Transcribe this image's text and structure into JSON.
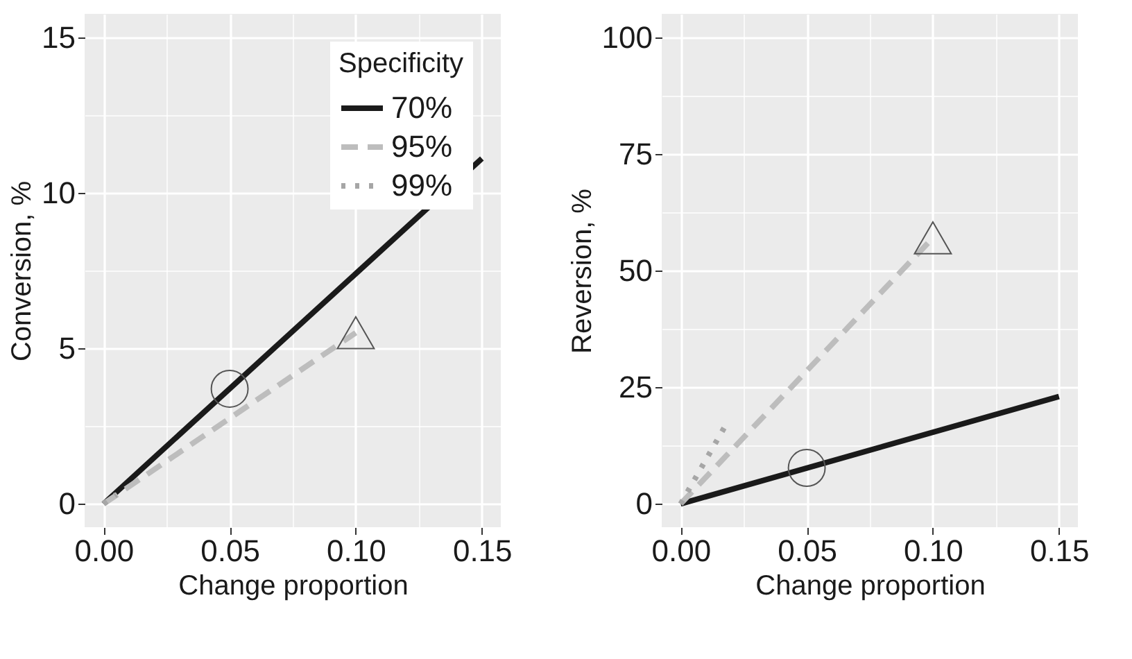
{
  "chart_data": [
    {
      "type": "line",
      "xlabel": "Change proportion",
      "ylabel": "Conversion, %",
      "legend_title": "Specificity",
      "legend": "top right",
      "grid": true,
      "xlim": [
        -0.0075,
        0.1575
      ],
      "ylim": [
        -0.75,
        15.75
      ],
      "xticks": [
        {
          "value": 0,
          "label": "0.00"
        },
        {
          "value": 0.025,
          "label": null
        },
        {
          "value": 0.05,
          "label": "0.05"
        },
        {
          "value": 0.075,
          "label": null
        },
        {
          "value": 0.1,
          "label": "0.10"
        },
        {
          "value": 0.125,
          "label": null
        },
        {
          "value": 0.15,
          "label": "0.15"
        }
      ],
      "yticks": [
        0,
        {
          "value": 2.5,
          "label": null
        },
        5,
        {
          "value": 7.5,
          "label": null
        },
        10,
        {
          "value": 12.5,
          "label": null
        },
        15
      ],
      "series": [
        {
          "name": "70%",
          "color": "#1a1a1a",
          "line_style": "solid",
          "x": [
            0,
            0.15
          ],
          "values": [
            0,
            11.1
          ]
        },
        {
          "name": "95%",
          "color": "#bdbdbd",
          "line_style": "dashed",
          "x": [
            0,
            0.1
          ],
          "values": [
            0,
            5.5
          ]
        },
        {
          "name": "99%",
          "color": "#a6a6a6",
          "line_style": "dotted",
          "x": [
            0,
            0.005
          ],
          "values": [
            0,
            0.3
          ]
        },
        {
          "type": "scatter",
          "marker": "circle",
          "color": "#555555",
          "x": [
            0.05
          ],
          "values": [
            3.7
          ]
        },
        {
          "type": "scatter",
          "marker": "triangle",
          "color": "#555555",
          "x": [
            0.1
          ],
          "values": [
            5.5
          ]
        }
      ]
    },
    {
      "type": "line",
      "xlabel": "Change proportion",
      "ylabel": "Reversion, %",
      "grid": true,
      "xlim": [
        -0.0075,
        0.1575
      ],
      "ylim": [
        -5,
        105
      ],
      "xticks": [
        {
          "value": 0,
          "label": "0.00"
        },
        {
          "value": 0.025,
          "label": null
        },
        {
          "value": 0.05,
          "label": "0.05"
        },
        {
          "value": 0.075,
          "label": null
        },
        {
          "value": 0.1,
          "label": "0.10"
        },
        {
          "value": 0.125,
          "label": null
        },
        {
          "value": 0.15,
          "label": "0.15"
        }
      ],
      "yticks": [
        0,
        {
          "value": 12.5,
          "label": null
        },
        25,
        {
          "value": 37.5,
          "label": null
        },
        50,
        {
          "value": 62.5,
          "label": null
        },
        75,
        {
          "value": 87.5,
          "label": null
        },
        100
      ],
      "series": [
        {
          "color": "#1a1a1a",
          "line_style": "solid",
          "x": [
            0,
            0.15
          ],
          "values": [
            0,
            23
          ]
        },
        {
          "color": "#bdbdbd",
          "line_style": "dashed",
          "x": [
            0,
            0.1
          ],
          "values": [
            0,
            57
          ]
        },
        {
          "color": "#a6a6a6",
          "line_style": "dotted",
          "x": [
            0,
            0.018
          ],
          "values": [
            0,
            17
          ]
        },
        {
          "type": "scatter",
          "marker": "circle",
          "color": "#555555",
          "x": [
            0.05
          ],
          "values": [
            7.7
          ]
        },
        {
          "type": "scatter",
          "marker": "triangle",
          "color": "#555555",
          "x": [
            0.1
          ],
          "values": [
            57
          ]
        }
      ]
    }
  ]
}
